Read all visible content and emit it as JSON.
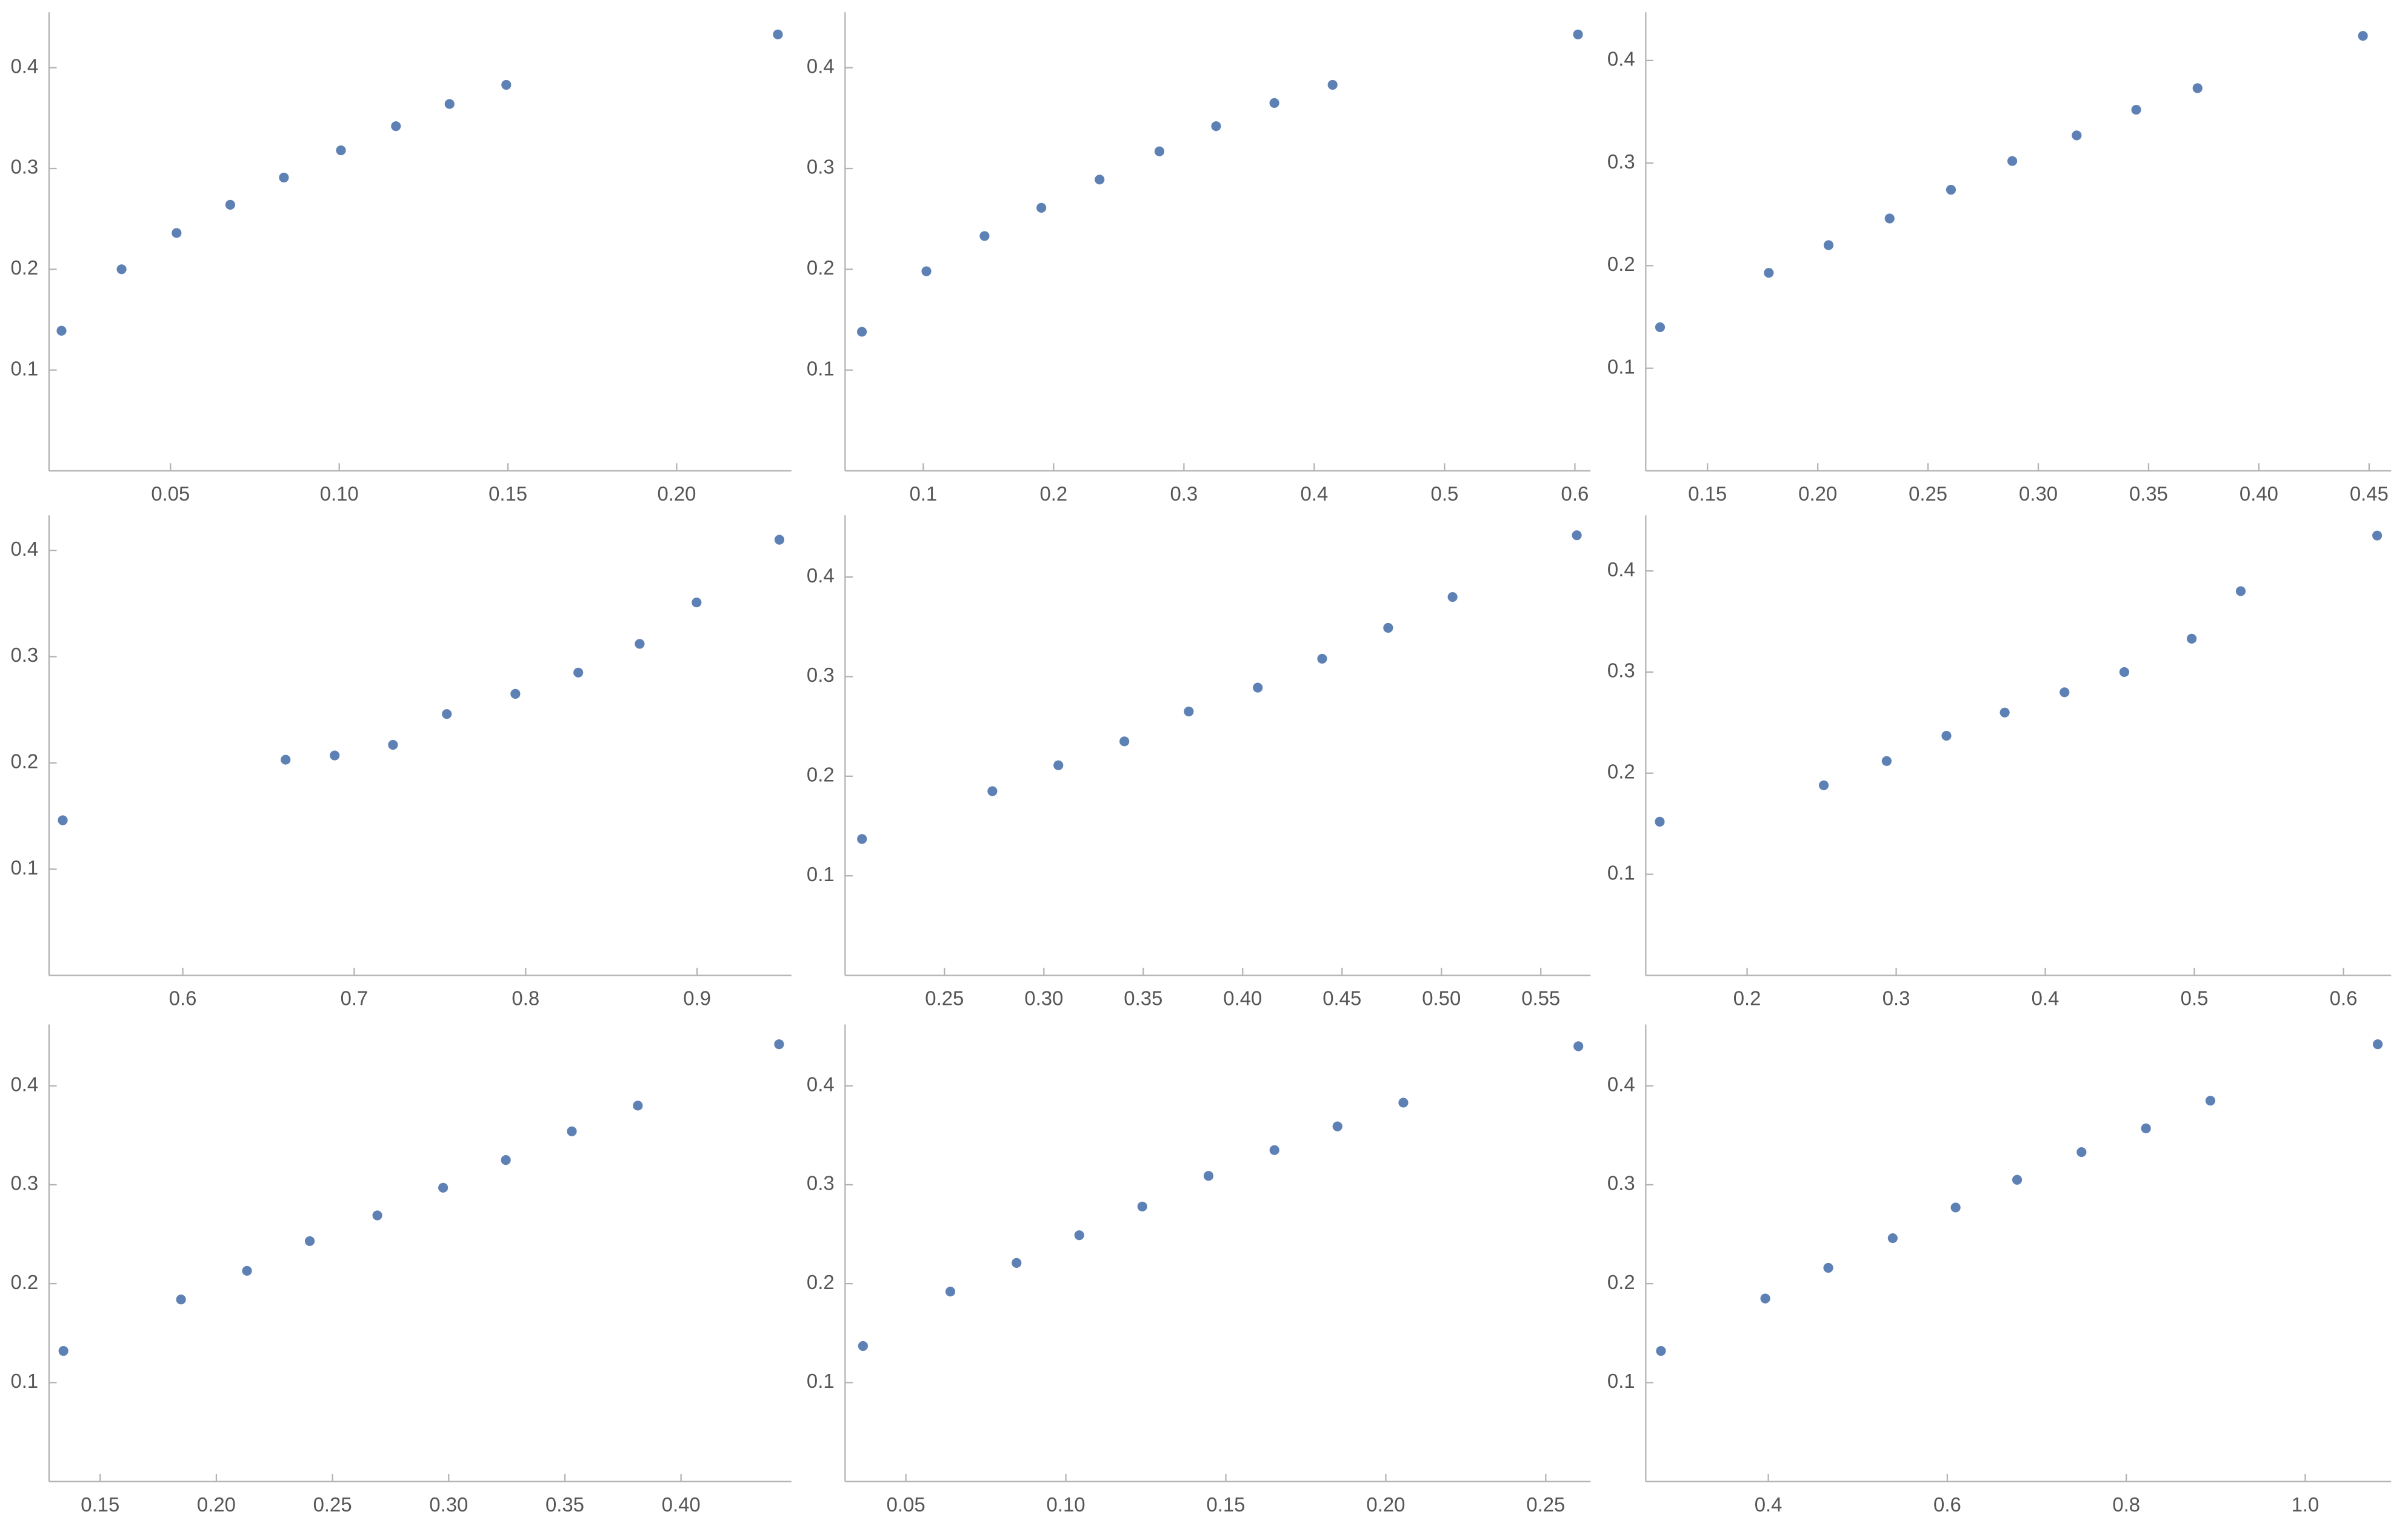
{
  "chart_data": [
    {
      "type": "scatter",
      "color": "#5e81b5",
      "x": [
        0.0177,
        0.0355,
        0.0518,
        0.0677,
        0.0836,
        0.1005,
        0.1168,
        0.1327,
        0.1495,
        0.23
      ],
      "values": [
        0.139,
        0.2,
        0.236,
        0.264,
        0.291,
        0.318,
        0.342,
        0.364,
        0.383,
        0.433
      ],
      "xlim": [
        0.014,
        0.234
      ],
      "ylim": [
        0,
        0.455
      ],
      "xticks": [
        0.05,
        {
          "value": 0.1,
          "label": "0.10"
        },
        0.15,
        {
          "value": 0.2,
          "label": "0.20"
        }
      ],
      "yticks": [
        0.1,
        0.2,
        0.3,
        0.4
      ]
    },
    {
      "type": "scatter",
      "color": "#5e81b5",
      "x": [
        0.0529,
        0.1024,
        0.147,
        0.1906,
        0.2353,
        0.2812,
        0.3247,
        0.3694,
        0.4141,
        0.6024
      ],
      "values": [
        0.138,
        0.198,
        0.233,
        0.261,
        0.289,
        0.317,
        0.342,
        0.365,
        0.383,
        0.433
      ],
      "xlim": [
        0.04,
        0.612
      ],
      "ylim": [
        0,
        0.455
      ],
      "xticks": [
        0.1,
        0.2,
        0.3,
        0.4,
        0.5,
        0.6
      ],
      "yticks": [
        0.1,
        0.2,
        0.3,
        0.4
      ]
    },
    {
      "type": "scatter",
      "color": "#5e81b5",
      "x": [
        0.1285,
        0.1778,
        0.2049,
        0.2326,
        0.2604,
        0.2882,
        0.3174,
        0.3444,
        0.3722,
        0.4472
      ],
      "values": [
        0.14,
        0.193,
        0.22,
        0.246,
        0.274,
        0.302,
        0.327,
        0.352,
        0.373,
        0.424
      ],
      "xlim": [
        0.122,
        0.46
      ],
      "ylim": [
        0,
        0.447
      ],
      "xticks": [
        0.15,
        {
          "value": 0.2,
          "label": "0.20"
        },
        0.25,
        {
          "value": 0.3,
          "label": "0.30"
        },
        0.35,
        {
          "value": 0.4,
          "label": "0.40"
        },
        0.45
      ],
      "yticks": [
        0.1,
        0.2,
        0.3,
        0.4
      ]
    },
    {
      "type": "scatter",
      "color": "#5e81b5",
      "x": [
        0.53,
        0.66,
        0.6886,
        0.7226,
        0.754,
        0.794,
        0.8307,
        0.8665,
        0.8997,
        0.948
      ],
      "values": [
        0.146,
        0.203,
        0.207,
        0.217,
        0.246,
        0.265,
        0.285,
        0.312,
        0.351,
        0.41
      ],
      "xlim": [
        0.522,
        0.955
      ],
      "ylim": [
        0,
        0.433
      ],
      "xticks": [
        0.6,
        0.7,
        0.8,
        0.9
      ],
      "yticks": [
        0.1,
        0.2,
        0.3,
        0.4
      ]
    },
    {
      "type": "scatter",
      "color": "#5e81b5",
      "x": [
        0.2085,
        0.2741,
        0.3073,
        0.3405,
        0.3729,
        0.4076,
        0.44,
        0.4732,
        0.5056,
        0.5681
      ],
      "values": [
        0.137,
        0.185,
        0.211,
        0.235,
        0.265,
        0.289,
        0.318,
        0.349,
        0.38,
        0.442
      ],
      "xlim": [
        0.2,
        0.575
      ],
      "ylim": [
        0,
        0.462
      ],
      "xticks": [
        0.25,
        {
          "value": 0.3,
          "label": "0.30"
        },
        0.35,
        {
          "value": 0.4,
          "label": "0.40"
        },
        0.45,
        {
          "value": 0.5,
          "label": "0.50"
        },
        0.55
      ],
      "yticks": [
        0.1,
        0.2,
        0.3,
        0.4
      ]
    },
    {
      "type": "scatter",
      "color": "#5e81b5",
      "x": [
        0.1414,
        0.2514,
        0.2936,
        0.3337,
        0.3728,
        0.4129,
        0.453,
        0.4982,
        0.5311,
        0.6226
      ],
      "values": [
        0.152,
        0.188,
        0.212,
        0.237,
        0.26,
        0.28,
        0.3,
        0.333,
        0.38,
        0.435
      ],
      "xlim": [
        0.132,
        0.632
      ],
      "ylim": [
        0,
        0.455
      ],
      "xticks": [
        0.2,
        0.3,
        0.4,
        0.5,
        0.6
      ],
      "yticks": [
        0.1,
        0.2,
        0.3,
        0.4
      ]
    },
    {
      "type": "scatter",
      "color": "#5e81b5",
      "x": [
        0.1342,
        0.1848,
        0.2132,
        0.2402,
        0.2693,
        0.2976,
        0.3246,
        0.353,
        0.3814,
        0.4422
      ],
      "values": [
        0.132,
        0.184,
        0.213,
        0.243,
        0.269,
        0.297,
        0.325,
        0.354,
        0.38,
        0.442
      ],
      "xlim": [
        0.128,
        0.4475
      ],
      "ylim": [
        0,
        0.462
      ],
      "xticks": [
        0.15,
        {
          "value": 0.2,
          "label": "0.20"
        },
        0.25,
        {
          "value": 0.3,
          "label": "0.30"
        },
        0.35,
        {
          "value": 0.4,
          "label": "0.40"
        }
      ],
      "yticks": [
        0.1,
        0.2,
        0.3,
        0.4
      ]
    },
    {
      "type": "scatter",
      "color": "#5e81b5",
      "x": [
        0.0366,
        0.0639,
        0.0846,
        0.1042,
        0.1239,
        0.1446,
        0.1652,
        0.1849,
        0.2055,
        0.2602
      ],
      "values": [
        0.137,
        0.192,
        0.221,
        0.249,
        0.278,
        0.309,
        0.335,
        0.359,
        0.383,
        0.44
      ],
      "xlim": [
        0.031,
        0.264
      ],
      "ylim": [
        0,
        0.462
      ],
      "xticks": [
        0.05,
        {
          "value": 0.1,
          "label": "0.10"
        },
        0.15,
        {
          "value": 0.2,
          "label": "0.20"
        },
        0.25
      ],
      "yticks": [
        0.1,
        0.2,
        0.3,
        0.4
      ]
    },
    {
      "type": "scatter",
      "color": "#5e81b5",
      "x": [
        0.28,
        0.3966,
        0.467,
        0.539,
        0.6093,
        0.678,
        0.75,
        0.822,
        0.894,
        1.081
      ],
      "values": [
        0.132,
        0.185,
        0.216,
        0.246,
        0.277,
        0.305,
        0.333,
        0.357,
        0.385,
        0.442
      ],
      "xlim": [
        0.263,
        1.096
      ],
      "ylim": [
        0,
        0.462
      ],
      "xticks": [
        0.4,
        0.6,
        0.8,
        {
          "value": 1,
          "label": "1.0"
        }
      ],
      "yticks": [
        0.1,
        0.2,
        0.3,
        0.4
      ]
    }
  ]
}
